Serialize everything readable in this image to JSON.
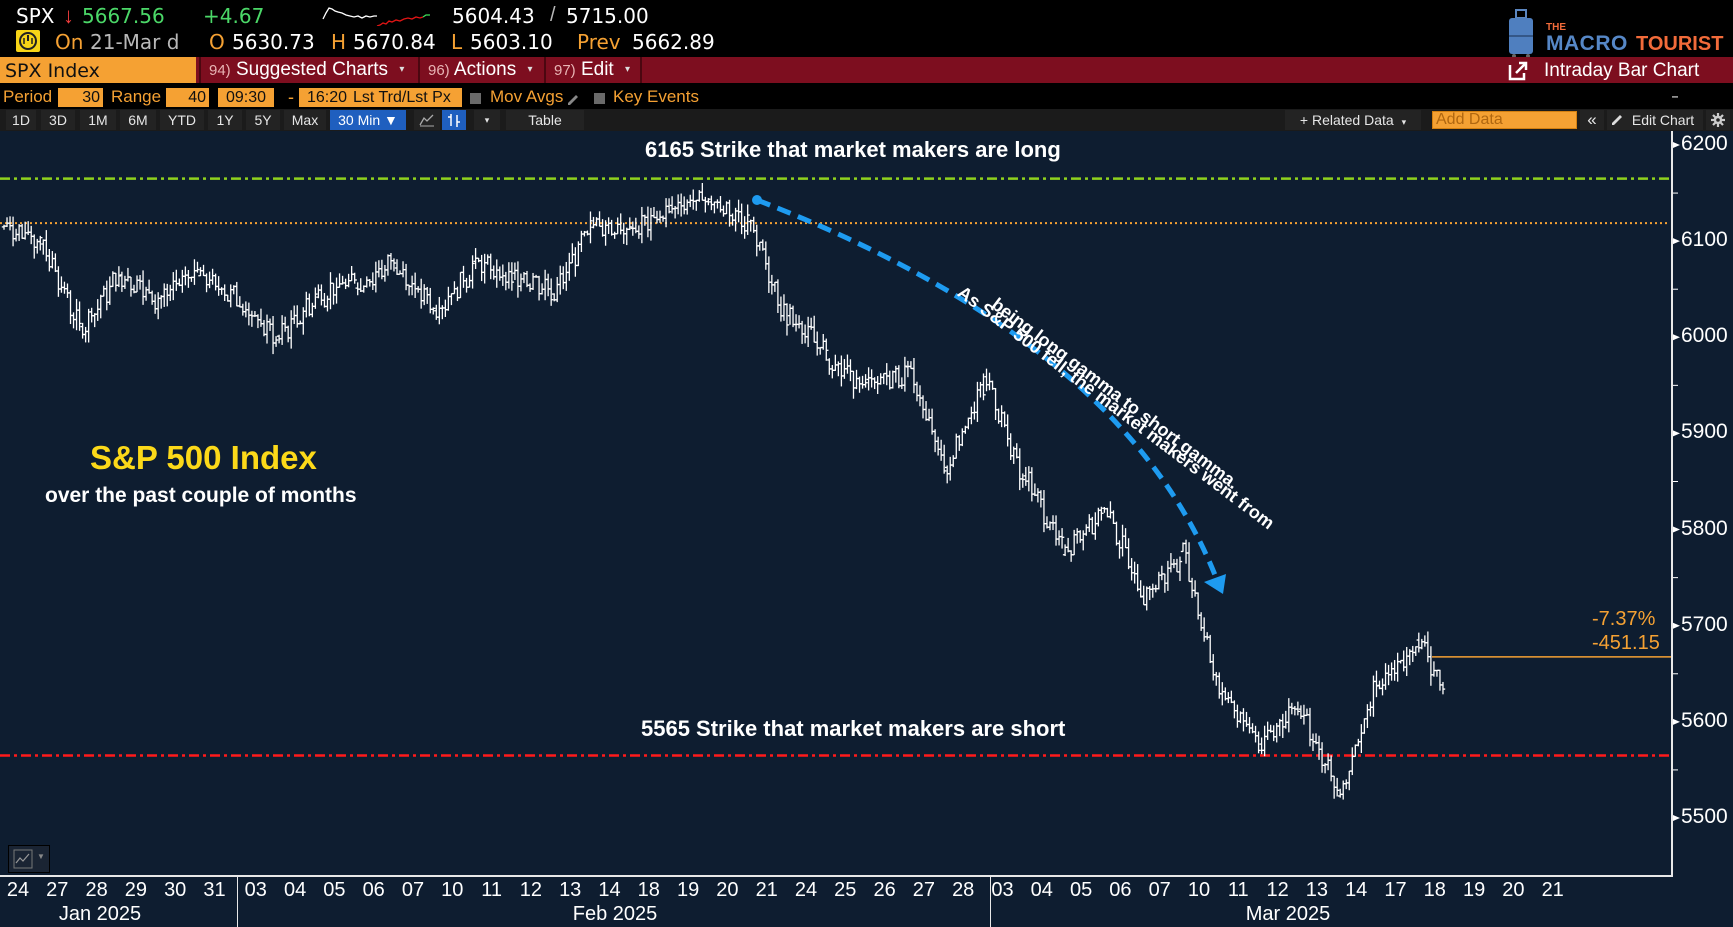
{
  "quote": {
    "ticker": "SPX",
    "direction_icon": "↓",
    "last_price": "5667.56",
    "change": "+4.67",
    "range_low": "5604.43",
    "range_sep": "/",
    "range_high": "5715.00",
    "on_label": "On",
    "date": "21-Mar d",
    "open_label": "O",
    "open": "5630.73",
    "high_label": "H",
    "high": "5670.84",
    "low_label": "L",
    "low": "5603.10",
    "prev_label": "Prev",
    "prev": "5662.89"
  },
  "logo": {
    "the": "THE",
    "macro": "MACRO",
    "tourist": "TOURIST"
  },
  "menubar": {
    "security": "SPX Index",
    "suggested_num": "94)",
    "suggested_label": "Suggested Charts",
    "actions_num": "96)",
    "actions_label": "Actions",
    "edit_num": "97)",
    "edit_label": "Edit",
    "caret": "▾",
    "chart_type": "Intraday Bar Chart"
  },
  "settings": {
    "period_label": "Period",
    "period_value": "30",
    "range_label": "Range",
    "range_value": "40",
    "start_time": "09:30",
    "dash": "-",
    "end_time": "16:20",
    "price_type": "Lst Trd/Lst Px",
    "mov_avgs": "Mov Avgs",
    "key_events": "Key Events"
  },
  "toolbar": {
    "ranges": [
      "1D",
      "3D",
      "1M",
      "6M",
      "YTD",
      "1Y",
      "5Y",
      "Max"
    ],
    "interval": "30 Min ▼",
    "table": "Table",
    "related_data": "+ Related Data",
    "add_data_placeholder": "Add Data",
    "collapse": "«",
    "edit_chart": "Edit Chart",
    "caret": "▾"
  },
  "chart": {
    "title": "S&P 500 Index",
    "subtitle": "over the past couple of months",
    "long_strike_label": "6165 Strike that market makers are long",
    "short_strike_label": "5565 Strike that market makers are short",
    "arrow_annotation_line1": "As S&P 500 fell, the market makers went from",
    "arrow_annotation_line2": "being long gamma to short gamma.",
    "pct_change": "-7.37%",
    "abs_change": "-451.15",
    "colors": {
      "background": "#0e1d30",
      "bars": "#ffffff",
      "long_strike": "#8fd11d",
      "short_strike": "#ff1a1a",
      "ref_line": "#f5a133",
      "arrow": "#1e9bf0",
      "title": "#fcd919"
    }
  },
  "chart_data": {
    "type": "bar",
    "title": "S&P 500 Index",
    "subtitle": "over the past couple of months",
    "interval": "30 Min",
    "ylim": [
      5440,
      6215
    ],
    "y_ticks": [
      5500,
      5600,
      5700,
      5800,
      5900,
      6000,
      6100,
      6200
    ],
    "x_tick_labels": [
      "24",
      "27",
      "28",
      "29",
      "30",
      "31",
      "03",
      "04",
      "05",
      "06",
      "07",
      "10",
      "11",
      "12",
      "13",
      "14",
      "18",
      "19",
      "20",
      "21",
      "24",
      "25",
      "26",
      "27",
      "28",
      "03",
      "04",
      "05",
      "06",
      "07",
      "10",
      "11",
      "12",
      "13",
      "14",
      "17",
      "18",
      "19",
      "20",
      "21"
    ],
    "month_labels": [
      "Jan 2025",
      "Feb 2025",
      "Mar 2025"
    ],
    "daily_approx_close": [
      6100,
      6010,
      6065,
      6040,
      6070,
      6040,
      6000,
      6040,
      6060,
      6080,
      6030,
      6070,
      6060,
      6050,
      6115,
      6115,
      6130,
      6145,
      6120,
      6015,
      5985,
      5950,
      5960,
      5865,
      5950,
      5850,
      5780,
      5820,
      5740,
      5770,
      5630,
      5580,
      5620,
      5530,
      5640,
      5680,
      5610,
      5690,
      5665,
      5668
    ],
    "horizontal_lines": [
      {
        "label": "6165 Strike that market makers are long",
        "value": 6165,
        "style": "dash-dot",
        "color": "#8fd11d"
      },
      {
        "label": "reference",
        "value": 6118.71,
        "style": "dotted",
        "color": "#f5a133"
      },
      {
        "label": "5565 Strike that market makers are short",
        "value": 5565,
        "style": "dash-dot",
        "color": "#ff1a1a"
      }
    ],
    "last_value_marker": {
      "value": 5667.56,
      "pct": "-7.37%",
      "abs": "-451.15"
    },
    "annotations": [
      "As S&P 500 fell, the market makers went from being long gamma to short gamma."
    ]
  }
}
